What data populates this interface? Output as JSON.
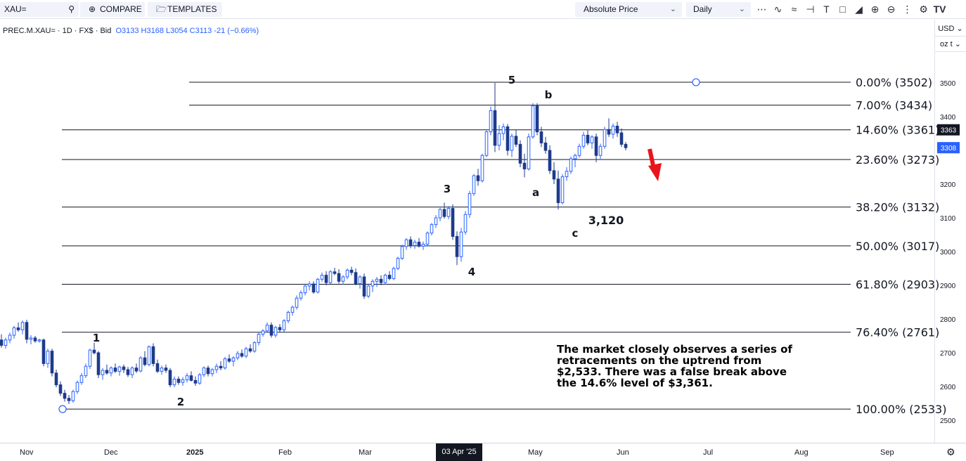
{
  "toolbar": {
    "symbol": "XAU=",
    "compare_label": "COMPARE",
    "templates_label": "TEMPLATES",
    "price_type": "Absolute Price",
    "interval": "Daily",
    "tool_icons": [
      "candles-icon",
      "indicators-icon",
      "wave-icon",
      "drawing-icon",
      "text-icon",
      "measure-icon",
      "shapes-icon",
      "zoom-in-icon",
      "zoom-out-icon",
      "more-icon",
      "settings-icon",
      "tradingview-logo"
    ]
  },
  "legend": {
    "instrument": "PREC.M.XAU= · 1D · FX$ · Bid",
    "ohlc": "O3133 H3168 L3054 C3113 -21 (−0.66%)"
  },
  "scale": {
    "currency": "USD",
    "unit": "oz t",
    "last_price": "3308",
    "crosshair_price": "3363",
    "ticks": [
      "3500",
      "3400",
      "3300",
      "3200",
      "3100",
      "3000",
      "2900",
      "2800",
      "2700",
      "2600",
      "2500"
    ]
  },
  "time_axis": {
    "labels": [
      "Nov",
      "Dec",
      "2025",
      "Feb",
      "Mar",
      "May",
      "Jun",
      "Jul",
      "Aug",
      "Sep"
    ],
    "cursor_date": "03 Apr '25"
  },
  "annotation": "The market closely observes a series of retracements on the uptrend from $2,533. There was a false break above the 14.6% level of $3,361.",
  "colors": {
    "bull": "#2962ff",
    "bear": "#1e3a8a",
    "arrow": "#e8141c",
    "fib": "#131722",
    "last_price_bg": "#2962ff",
    "crosshair_bg": "#131722"
  },
  "chart_data": {
    "type": "candlestick",
    "ylim": [
      2470,
      3580
    ],
    "price_axis": [
      3500,
      3400,
      3300,
      3200,
      3100,
      3000,
      2900,
      2800,
      2700,
      2600,
      2500
    ],
    "fib_levels": [
      {
        "label": "0.00% (3502)",
        "value": 3502
      },
      {
        "label": "7.00% (3434)",
        "value": 3434
      },
      {
        "label": "14.60% (3361)",
        "value": 3361
      },
      {
        "label": "23.60% (3273)",
        "value": 3273
      },
      {
        "label": "38.20% (3132)",
        "value": 3132
      },
      {
        "label": "50.00% (3017)",
        "value": 3017
      },
      {
        "label": "61.80% (2903)",
        "value": 2903
      },
      {
        "label": "76.40% (2761)",
        "value": 2761
      },
      {
        "label": "100.00% (2533)",
        "value": 2533
      }
    ],
    "wave_labels": [
      "1",
      "2",
      "3",
      "4",
      "5",
      "a",
      "b",
      "c",
      "3,120"
    ],
    "candles": [
      [
        2738,
        2755,
        2715,
        2722
      ],
      [
        2722,
        2745,
        2712,
        2738
      ],
      [
        2738,
        2760,
        2728,
        2752
      ],
      [
        2752,
        2780,
        2742,
        2774
      ],
      [
        2774,
        2790,
        2762,
        2768
      ],
      [
        2768,
        2796,
        2755,
        2790
      ],
      [
        2790,
        2798,
        2728,
        2740
      ],
      [
        2740,
        2752,
        2725,
        2744
      ],
      [
        2744,
        2750,
        2730,
        2735
      ],
      [
        2735,
        2742,
        2730,
        2738
      ],
      [
        2738,
        2742,
        2660,
        2668
      ],
      [
        2668,
        2712,
        2655,
        2705
      ],
      [
        2705,
        2712,
        2630,
        2640
      ],
      [
        2640,
        2650,
        2598,
        2605
      ],
      [
        2605,
        2615,
        2572,
        2580
      ],
      [
        2580,
        2590,
        2555,
        2565
      ],
      [
        2565,
        2575,
        2548,
        2558
      ],
      [
        2558,
        2590,
        2552,
        2585
      ],
      [
        2585,
        2618,
        2578,
        2612
      ],
      [
        2612,
        2640,
        2605,
        2632
      ],
      [
        2632,
        2668,
        2625,
        2660
      ],
      [
        2660,
        2712,
        2652,
        2708
      ],
      [
        2708,
        2730,
        2695,
        2700
      ],
      [
        2700,
        2705,
        2625,
        2635
      ],
      [
        2635,
        2655,
        2620,
        2648
      ],
      [
        2648,
        2665,
        2635,
        2640
      ],
      [
        2640,
        2660,
        2630,
        2655
      ],
      [
        2655,
        2668,
        2640,
        2645
      ],
      [
        2645,
        2662,
        2632,
        2658
      ],
      [
        2658,
        2665,
        2640,
        2650
      ],
      [
        2650,
        2658,
        2628,
        2635
      ],
      [
        2635,
        2660,
        2625,
        2655
      ],
      [
        2655,
        2668,
        2640,
        2646
      ],
      [
        2646,
        2690,
        2642,
        2685
      ],
      [
        2685,
        2705,
        2660,
        2665
      ],
      [
        2665,
        2722,
        2660,
        2718
      ],
      [
        2718,
        2728,
        2660,
        2668
      ],
      [
        2668,
        2680,
        2640,
        2645
      ],
      [
        2645,
        2662,
        2635,
        2655
      ],
      [
        2655,
        2665,
        2640,
        2648
      ],
      [
        2648,
        2655,
        2598,
        2605
      ],
      [
        2605,
        2630,
        2598,
        2622
      ],
      [
        2622,
        2630,
        2605,
        2612
      ],
      [
        2612,
        2628,
        2602,
        2620
      ],
      [
        2620,
        2640,
        2612,
        2632
      ],
      [
        2632,
        2645,
        2615,
        2618
      ],
      [
        2618,
        2630,
        2602,
        2610
      ],
      [
        2610,
        2640,
        2605,
        2635
      ],
      [
        2635,
        2660,
        2628,
        2655
      ],
      [
        2655,
        2662,
        2630,
        2638
      ],
      [
        2638,
        2655,
        2630,
        2650
      ],
      [
        2650,
        2668,
        2640,
        2660
      ],
      [
        2660,
        2675,
        2648,
        2655
      ],
      [
        2655,
        2688,
        2650,
        2682
      ],
      [
        2682,
        2695,
        2670,
        2675
      ],
      [
        2675,
        2690,
        2660,
        2685
      ],
      [
        2685,
        2705,
        2678,
        2698
      ],
      [
        2698,
        2710,
        2685,
        2690
      ],
      [
        2690,
        2718,
        2684,
        2712
      ],
      [
        2712,
        2725,
        2700,
        2705
      ],
      [
        2705,
        2735,
        2700,
        2730
      ],
      [
        2730,
        2760,
        2722,
        2755
      ],
      [
        2755,
        2770,
        2748,
        2765
      ],
      [
        2765,
        2790,
        2760,
        2782
      ],
      [
        2782,
        2790,
        2745,
        2752
      ],
      [
        2752,
        2780,
        2745,
        2775
      ],
      [
        2775,
        2785,
        2760,
        2768
      ],
      [
        2768,
        2800,
        2762,
        2795
      ],
      [
        2795,
        2825,
        2788,
        2820
      ],
      [
        2820,
        2840,
        2810,
        2835
      ],
      [
        2835,
        2870,
        2828,
        2862
      ],
      [
        2862,
        2885,
        2855,
        2878
      ],
      [
        2878,
        2905,
        2870,
        2898
      ],
      [
        2898,
        2912,
        2885,
        2904
      ],
      [
        2904,
        2912,
        2875,
        2880
      ],
      [
        2880,
        2922,
        2876,
        2918
      ],
      [
        2918,
        2938,
        2910,
        2930
      ],
      [
        2930,
        2942,
        2900,
        2908
      ],
      [
        2908,
        2945,
        2904,
        2940
      ],
      [
        2940,
        2952,
        2930,
        2935
      ],
      [
        2935,
        2948,
        2905,
        2912
      ],
      [
        2912,
        2930,
        2902,
        2925
      ],
      [
        2925,
        2950,
        2918,
        2945
      ],
      [
        2945,
        2955,
        2930,
        2938
      ],
      [
        2938,
        2950,
        2900,
        2905
      ],
      [
        2905,
        2930,
        2890,
        2925
      ],
      [
        2925,
        2935,
        2860,
        2868
      ],
      [
        2868,
        2905,
        2862,
        2898
      ],
      [
        2898,
        2918,
        2880,
        2912
      ],
      [
        2912,
        2925,
        2895,
        2918
      ],
      [
        2918,
        2930,
        2900,
        2908
      ],
      [
        2908,
        2935,
        2902,
        2930
      ],
      [
        2930,
        2942,
        2915,
        2920
      ],
      [
        2920,
        2955,
        2915,
        2950
      ],
      [
        2950,
        2985,
        2945,
        2980
      ],
      [
        2980,
        3020,
        2975,
        3015
      ],
      [
        3015,
        3040,
        3005,
        3035
      ],
      [
        3035,
        3045,
        3010,
        3018
      ],
      [
        3018,
        3035,
        3008,
        3028
      ],
      [
        3028,
        3040,
        3012,
        3016
      ],
      [
        3016,
        3030,
        3005,
        3022
      ],
      [
        3022,
        3060,
        3015,
        3055
      ],
      [
        3055,
        3085,
        3048,
        3080
      ],
      [
        3080,
        3108,
        3070,
        3100
      ],
      [
        3100,
        3130,
        3090,
        3125
      ],
      [
        3125,
        3145,
        3098,
        3104
      ],
      [
        3104,
        3135,
        3096,
        3128
      ],
      [
        3128,
        3140,
        3035,
        3045
      ],
      [
        3045,
        3060,
        2960,
        2985
      ],
      [
        2985,
        3070,
        2970,
        3058
      ],
      [
        3058,
        3120,
        3050,
        3110
      ],
      [
        3110,
        3180,
        3100,
        3172
      ],
      [
        3172,
        3230,
        3165,
        3225
      ],
      [
        3225,
        3245,
        3195,
        3210
      ],
      [
        3210,
        3290,
        3205,
        3285
      ],
      [
        3285,
        3360,
        3280,
        3355
      ],
      [
        3355,
        3430,
        3345,
        3418
      ],
      [
        3418,
        3500,
        3295,
        3315
      ],
      [
        3315,
        3375,
        3300,
        3350
      ],
      [
        3350,
        3380,
        3330,
        3370
      ],
      [
        3370,
        3378,
        3285,
        3300
      ],
      [
        3300,
        3350,
        3280,
        3342
      ],
      [
        3342,
        3362,
        3310,
        3318
      ],
      [
        3318,
        3330,
        3250,
        3262
      ],
      [
        3262,
        3290,
        3220,
        3245
      ],
      [
        3245,
        3350,
        3240,
        3340
      ],
      [
        3340,
        3440,
        3335,
        3432
      ],
      [
        3432,
        3440,
        3345,
        3355
      ],
      [
        3355,
        3370,
        3310,
        3322
      ],
      [
        3322,
        3340,
        3290,
        3300
      ],
      [
        3300,
        3315,
        3230,
        3240
      ],
      [
        3240,
        3265,
        3200,
        3215
      ],
      [
        3215,
        3240,
        3125,
        3145
      ],
      [
        3145,
        3230,
        3140,
        3222
      ],
      [
        3222,
        3250,
        3210,
        3238
      ],
      [
        3238,
        3282,
        3230,
        3275
      ],
      [
        3275,
        3290,
        3250,
        3285
      ],
      [
        3285,
        3320,
        3278,
        3312
      ],
      [
        3312,
        3355,
        3305,
        3345
      ],
      [
        3345,
        3360,
        3315,
        3322
      ],
      [
        3322,
        3345,
        3305,
        3340
      ],
      [
        3340,
        3350,
        3265,
        3285
      ],
      [
        3285,
        3320,
        3275,
        3312
      ],
      [
        3312,
        3370,
        3305,
        3362
      ],
      [
        3362,
        3395,
        3340,
        3348
      ],
      [
        3348,
        3380,
        3335,
        3372
      ],
      [
        3372,
        3385,
        3340,
        3352
      ],
      [
        3352,
        3365,
        3310,
        3318
      ],
      [
        3318,
        3325,
        3300,
        3308
      ]
    ]
  }
}
